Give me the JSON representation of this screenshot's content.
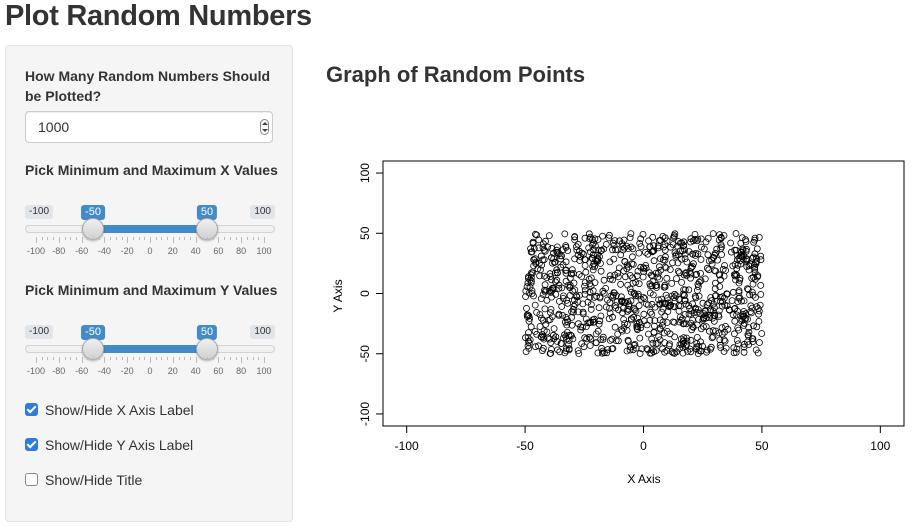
{
  "app": {
    "title": "Plot Random Numbers"
  },
  "sidebar": {
    "count_label": "How Many Random Numbers Should be Plotted?",
    "count_value": "1000",
    "x_slider": {
      "label": "Pick Minimum and Maximum X Values",
      "min": -100,
      "max": 100,
      "from": -50,
      "to": 50,
      "min_label": "-100",
      "max_label": "100",
      "from_label": "-50",
      "to_label": "50",
      "tick_labels": [
        "-100",
        "-80",
        "-60",
        "-40",
        "-20",
        "0",
        "20",
        "40",
        "60",
        "80",
        "100"
      ]
    },
    "y_slider": {
      "label": "Pick Minimum and Maximum Y Values",
      "min": -100,
      "max": 100,
      "from": -50,
      "to": 50,
      "min_label": "-100",
      "max_label": "100",
      "from_label": "-50",
      "to_label": "50",
      "tick_labels": [
        "-100",
        "-80",
        "-60",
        "-40",
        "-20",
        "0",
        "20",
        "40",
        "60",
        "80",
        "100"
      ]
    },
    "checkboxes": [
      {
        "label": "Show/Hide X Axis Label",
        "checked": true
      },
      {
        "label": "Show/Hide Y Axis Label",
        "checked": true
      },
      {
        "label": "Show/Hide Title",
        "checked": false
      }
    ]
  },
  "main": {
    "title": "Graph of Random Points",
    "chart_data": {
      "type": "scatter",
      "title": "",
      "xlabel": "X Axis",
      "ylabel": "Y Axis",
      "xlim": [
        -110,
        110
      ],
      "ylim": [
        -110,
        110
      ],
      "xticks": [
        -100,
        -50,
        0,
        50,
        100
      ],
      "yticks": [
        -100,
        -50,
        0,
        50,
        100
      ],
      "point_count": 1000,
      "x_range": [
        -50,
        50
      ],
      "y_range": [
        -50,
        50
      ],
      "marker": "open-circle",
      "color": "#000000",
      "grid": false
    }
  },
  "colors": {
    "accent": "#428bca",
    "checkbox": "#2f7ce0",
    "sidebar_bg": "#f5f5f5"
  }
}
